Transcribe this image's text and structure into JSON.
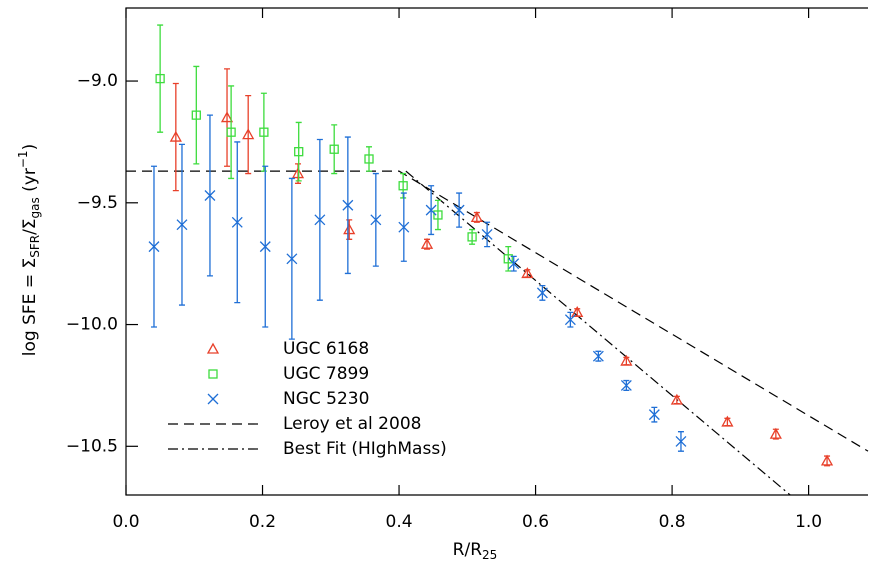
{
  "chart_data": {
    "type": "scatter",
    "x_label": [
      "R/R",
      "25"
    ],
    "y_label": [
      "log SFE = Σ",
      "SFR",
      "/Σ",
      "gas",
      " (yr",
      "−1",
      ")"
    ],
    "xlim": [
      0,
      1.087
    ],
    "ylim": [
      -10.7,
      -8.7
    ],
    "xticks": [
      {
        "value": 0,
        "label": "0.0"
      },
      0.2,
      0.4,
      0.6,
      0.8,
      {
        "value": 1,
        "label": "1.0"
      }
    ],
    "yticks": [
      {
        "value": -9,
        "label": "−9.0"
      },
      {
        "value": -9.5,
        "label": "−9.5"
      },
      {
        "value": -10,
        "label": "−10.0"
      },
      {
        "value": -10.5,
        "label": "−10.5"
      }
    ],
    "series": [
      {
        "name": "UGC 6168",
        "color": "#e8402a",
        "marker": "triangle",
        "x": [
          0.073,
          0.148,
          0.179,
          0.252,
          0.327,
          0.441,
          0.514,
          0.588,
          0.661,
          0.733,
          0.807,
          0.881,
          0.952,
          1.027
        ],
        "values": [
          -9.23,
          -9.15,
          -9.22,
          -9.38,
          -9.61,
          -9.67,
          -9.56,
          -9.79,
          -9.95,
          -10.15,
          -10.31,
          -10.4,
          -10.45,
          -10.56
        ],
        "errors": [
          0.22,
          0.2,
          0.16,
          0.04,
          0.04,
          0.02,
          0.02,
          0.015,
          0.015,
          0.015,
          0.015,
          0.015,
          0.02,
          0.02
        ]
      },
      {
        "name": "UGC 7899",
        "color": "#3ddc3d",
        "marker": "square",
        "x": [
          0.05,
          0.103,
          0.154,
          0.202,
          0.253,
          0.305,
          0.356,
          0.406,
          0.457,
          0.507,
          0.56
        ],
        "values": [
          -8.99,
          -9.14,
          -9.21,
          -9.21,
          -9.29,
          -9.28,
          -9.32,
          -9.43,
          -9.55,
          -9.64,
          -9.73
        ],
        "errors": [
          0.22,
          0.2,
          0.19,
          0.16,
          0.12,
          0.1,
          0.05,
          0.05,
          0.06,
          0.03,
          0.05
        ]
      },
      {
        "name": "NGC 5230",
        "color": "#1f6fd6",
        "marker": "x",
        "x": [
          0.041,
          0.082,
          0.123,
          0.163,
          0.204,
          0.243,
          0.284,
          0.325,
          0.366,
          0.407,
          0.447,
          0.488,
          0.529,
          0.568,
          0.61,
          0.651,
          0.692,
          0.733,
          0.774,
          0.813
        ],
        "values": [
          -9.68,
          -9.59,
          -9.47,
          -9.58,
          -9.68,
          -9.73,
          -9.57,
          -9.51,
          -9.57,
          -9.6,
          -9.53,
          -9.53,
          -9.63,
          -9.75,
          -9.87,
          -9.98,
          -10.13,
          -10.25,
          -10.37,
          -10.48
        ],
        "errors": [
          0.33,
          0.33,
          0.33,
          0.33,
          0.33,
          0.33,
          0.33,
          0.28,
          0.19,
          0.14,
          0.1,
          0.07,
          0.05,
          0.03,
          0.03,
          0.03,
          0.02,
          0.02,
          0.03,
          0.04
        ]
      }
    ],
    "lines": [
      {
        "name": "Leroy et al 2008",
        "style": "dashed",
        "x": [
          0,
          0.4,
          1.087
        ],
        "values": [
          -9.37,
          -9.37,
          -10.52
        ]
      },
      {
        "name": "Best Fit (HIghMass)",
        "style": "dashdot",
        "x": [
          0.41,
          0.973
        ],
        "values": [
          -9.37,
          -10.7
        ]
      }
    ]
  }
}
